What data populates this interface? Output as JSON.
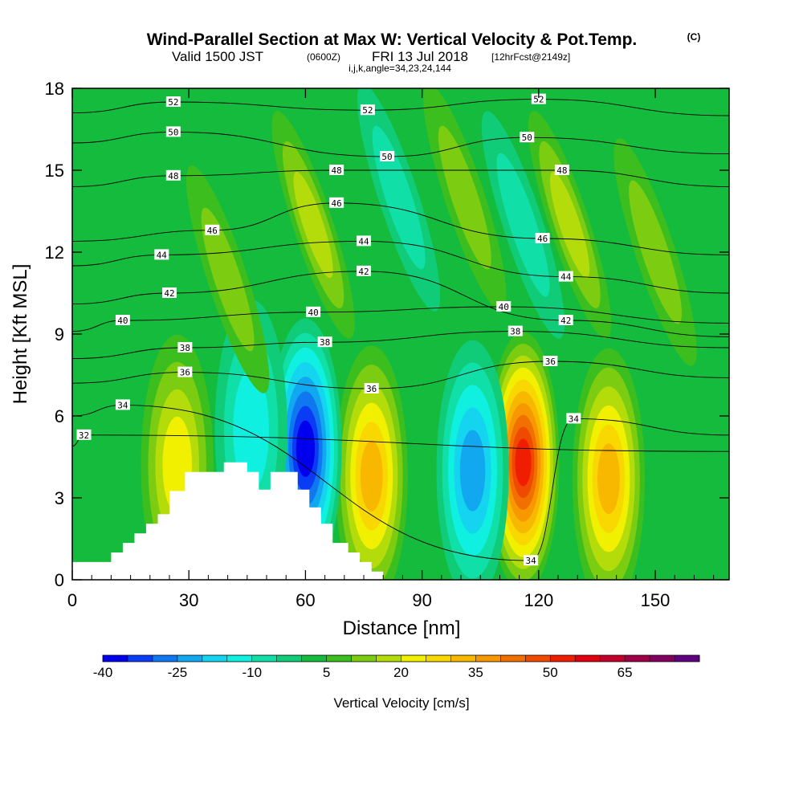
{
  "title": {
    "main": "Wind-Parallel Section at Max W: Vertical Velocity & Pot.Temp.",
    "copyright": "(C)",
    "valid_prefix": "Valid 1500 JST",
    "valid_z": "(0600Z)",
    "valid_date": "FRI 13 Jul 2018",
    "valid_fcst": "[12hrFcst@2149z]",
    "ijk": "i,j,k,angle=34,23,24,144"
  },
  "chart_data": {
    "type": "heatmap",
    "title": "Wind-Parallel Section at Max W: Vertical Velocity & Pot.Temp.",
    "xlabel": "Distance [nm]",
    "ylabel": "Height [Kft MSL]",
    "xlim": [
      0,
      169
    ],
    "ylim": [
      0,
      18
    ],
    "x_ticks": [
      0,
      30,
      60,
      90,
      120,
      150
    ],
    "y_ticks": [
      0,
      3,
      6,
      9,
      12,
      15,
      18
    ],
    "colorbar": {
      "title": "Vertical Velocity [cm/s]",
      "tick_labels": [
        -40,
        -25,
        -10,
        5,
        20,
        35,
        50,
        65
      ],
      "levels": [
        -40,
        -35,
        -30,
        -25,
        -20,
        -15,
        -10,
        -5,
        0,
        5,
        10,
        15,
        20,
        25,
        30,
        35,
        40,
        45,
        50,
        55,
        60,
        65,
        70,
        75
      ],
      "colors": [
        "#0000ee",
        "#0a3cf5",
        "#0f78f0",
        "#12a8f0",
        "#14d4f0",
        "#10f0e0",
        "#10e0a8",
        "#10cc78",
        "#14bb3c",
        "#3cbf1e",
        "#7ccc12",
        "#b4dc0a",
        "#f0f000",
        "#f8d800",
        "#f8b800",
        "#f89800",
        "#f07000",
        "#f04a00",
        "#f01e00",
        "#e00010",
        "#c0002a",
        "#a00048",
        "#82005e",
        "#600080"
      ]
    },
    "w_cells": [
      {
        "x": 77,
        "y": 3.8,
        "w": 28,
        "label": "updraft"
      },
      {
        "x": 116,
        "y": 4.3,
        "w": 50,
        "label": "updraft"
      },
      {
        "x": 138,
        "y": 3.7,
        "w": 28,
        "label": "updraft"
      },
      {
        "x": 27,
        "y": 4.2,
        "w": 22,
        "label": "updraft"
      },
      {
        "x": 60,
        "y": 4.8,
        "w": -38,
        "label": "downdraft"
      },
      {
        "x": 103,
        "y": 4.0,
        "w": -25,
        "label": "downdraft"
      },
      {
        "x": 46,
        "y": 5.5,
        "w": -15,
        "label": "downdraft"
      }
    ],
    "theta_labels": [
      {
        "text": "52",
        "x": 26,
        "y": 17.5
      },
      {
        "text": "50",
        "x": 26,
        "y": 16.4
      },
      {
        "text": "48",
        "x": 26,
        "y": 14.8
      },
      {
        "text": "46",
        "x": 36,
        "y": 12.8
      },
      {
        "text": "44",
        "x": 23,
        "y": 11.9
      },
      {
        "text": "42",
        "x": 25,
        "y": 10.5
      },
      {
        "text": "40",
        "x": 13,
        "y": 9.5
      },
      {
        "text": "38",
        "x": 29,
        "y": 8.5
      },
      {
        "text": "36",
        "x": 29,
        "y": 7.6
      },
      {
        "text": "34",
        "x": 13,
        "y": 6.4
      },
      {
        "text": "32",
        "x": 3,
        "y": 5.3
      },
      {
        "text": "52",
        "x": 76,
        "y": 17.2
      },
      {
        "text": "50",
        "x": 81,
        "y": 15.5
      },
      {
        "text": "48",
        "x": 68,
        "y": 15.0
      },
      {
        "text": "46",
        "x": 68,
        "y": 13.8
      },
      {
        "text": "44",
        "x": 75,
        "y": 12.4
      },
      {
        "text": "42",
        "x": 75,
        "y": 11.3
      },
      {
        "text": "40",
        "x": 62,
        "y": 9.8
      },
      {
        "text": "38",
        "x": 65,
        "y": 8.7
      },
      {
        "text": "36",
        "x": 77,
        "y": 7.0
      },
      {
        "text": "52",
        "x": 120,
        "y": 17.6
      },
      {
        "text": "50",
        "x": 117,
        "y": 16.2
      },
      {
        "text": "48",
        "x": 126,
        "y": 15.0
      },
      {
        "text": "46",
        "x": 121,
        "y": 12.5
      },
      {
        "text": "44",
        "x": 127,
        "y": 11.1
      },
      {
        "text": "40",
        "x": 111,
        "y": 10.0
      },
      {
        "text": "42",
        "x": 127,
        "y": 9.5
      },
      {
        "text": "38",
        "x": 114,
        "y": 9.1
      },
      {
        "text": "36",
        "x": 123,
        "y": 8.0
      },
      {
        "text": "34",
        "x": 129,
        "y": 5.9
      },
      {
        "text": "34",
        "x": 118,
        "y": 0.7
      }
    ],
    "terrain": [
      [
        0,
        0.65
      ],
      [
        10,
        0.65
      ],
      [
        10,
        1.0
      ],
      [
        13,
        1.0
      ],
      [
        13,
        1.35
      ],
      [
        16,
        1.35
      ],
      [
        16,
        1.7
      ],
      [
        19,
        1.7
      ],
      [
        19,
        2.05
      ],
      [
        22,
        2.05
      ],
      [
        22,
        2.4
      ],
      [
        25,
        2.4
      ],
      [
        25,
        3.25
      ],
      [
        29,
        3.25
      ],
      [
        29,
        3.95
      ],
      [
        39,
        3.95
      ],
      [
        39,
        4.3
      ],
      [
        45,
        4.3
      ],
      [
        45,
        3.95
      ],
      [
        48,
        3.95
      ],
      [
        48,
        3.3
      ],
      [
        51,
        3.3
      ],
      [
        51,
        3.95
      ],
      [
        58,
        3.95
      ],
      [
        58,
        3.3
      ],
      [
        61,
        3.3
      ],
      [
        61,
        2.65
      ],
      [
        64,
        2.65
      ],
      [
        64,
        2.05
      ],
      [
        67,
        2.05
      ],
      [
        67,
        1.35
      ],
      [
        71,
        1.35
      ],
      [
        71,
        1.0
      ],
      [
        74,
        1.0
      ],
      [
        74,
        0.65
      ],
      [
        77,
        0.65
      ],
      [
        77,
        0.3
      ],
      [
        80,
        0.3
      ]
    ]
  }
}
